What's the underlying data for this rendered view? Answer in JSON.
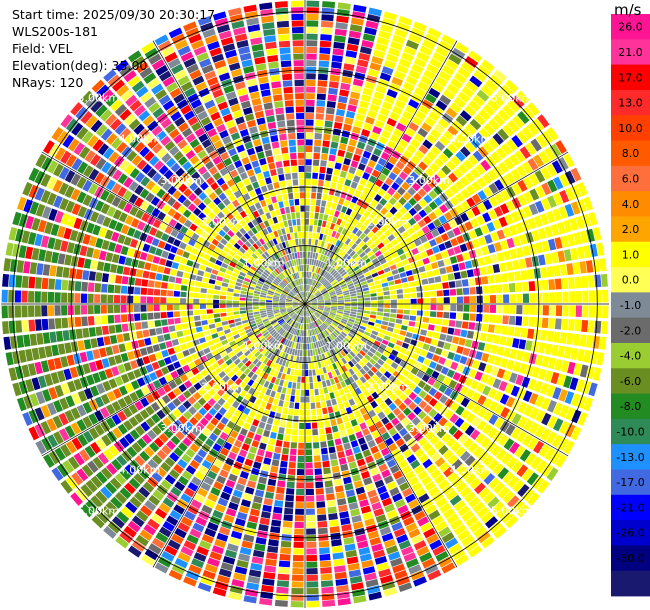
{
  "header": {
    "start_time": "Start time: 2025/09/30 20:30:17",
    "site": "WLS200s-181",
    "field": "Field: VEL",
    "elevation": "Elevation(deg): 35.00",
    "nrays": "NRays: 120"
  },
  "chart_data": {
    "type": "heatmap",
    "subtype": "polar-ppi",
    "field": "VEL",
    "unit": "m/s",
    "nrays": 120,
    "elevation_deg": 35.0,
    "range_ring_labels": [
      "1.00km",
      "2.00km",
      "3.00km",
      "4.00km",
      "5.00km"
    ],
    "range_rings_km": [
      1,
      2,
      3,
      4,
      5
    ],
    "max_range_km": 5.2,
    "colorbar": {
      "tick_labels": [
        "26.0",
        "21.0",
        "17.0",
        "13.0",
        "10.0",
        "8.0",
        "6.0",
        "4.0",
        "2.0",
        "1.0",
        "0.0",
        "-1.0",
        "-2.0",
        "-4.0",
        "-6.0",
        "-8.0",
        "-10.0",
        "-13.0",
        "-17.0",
        "-21.0",
        "-26.0",
        "-30.0"
      ],
      "colors_top_to_bottom": [
        "#ff1493",
        "#ff3399",
        "#ff0000",
        "#ff2a2a",
        "#ff4000",
        "#ff5a00",
        "#ff6f3c",
        "#ff8c00",
        "#ffa500",
        "#ffff00",
        "#ffff55",
        "#7e8a96",
        "#6b6b6b",
        "#9acd32",
        "#6b8e23",
        "#228b22",
        "#2e8b57",
        "#1e90ff",
        "#4169e1",
        "#0000ff",
        "#0000cd",
        "#000080",
        "#191970"
      ]
    },
    "regions": [
      {
        "description": "near-range (0-1.5km) mostly grey zero-velocity and light-green negative values",
        "dominant": [
          "#7e8a96",
          "#9acd32"
        ]
      },
      {
        "description": "1.0-2.5km ring mostly yellow (2-4 m/s)",
        "dominant": [
          "#ffff00"
        ]
      },
      {
        "description": "east sector beyond 3km mostly yellow (2-4 m/s)",
        "dominant": [
          "#ffff00"
        ]
      },
      {
        "description": "west sector beyond 3km mostly olive/green (-2 to -6 m/s)",
        "dominant": [
          "#6b8e23",
          "#228b22"
        ]
      },
      {
        "description": "outer ranges mostly noisy random colours",
        "dominant": []
      }
    ]
  }
}
